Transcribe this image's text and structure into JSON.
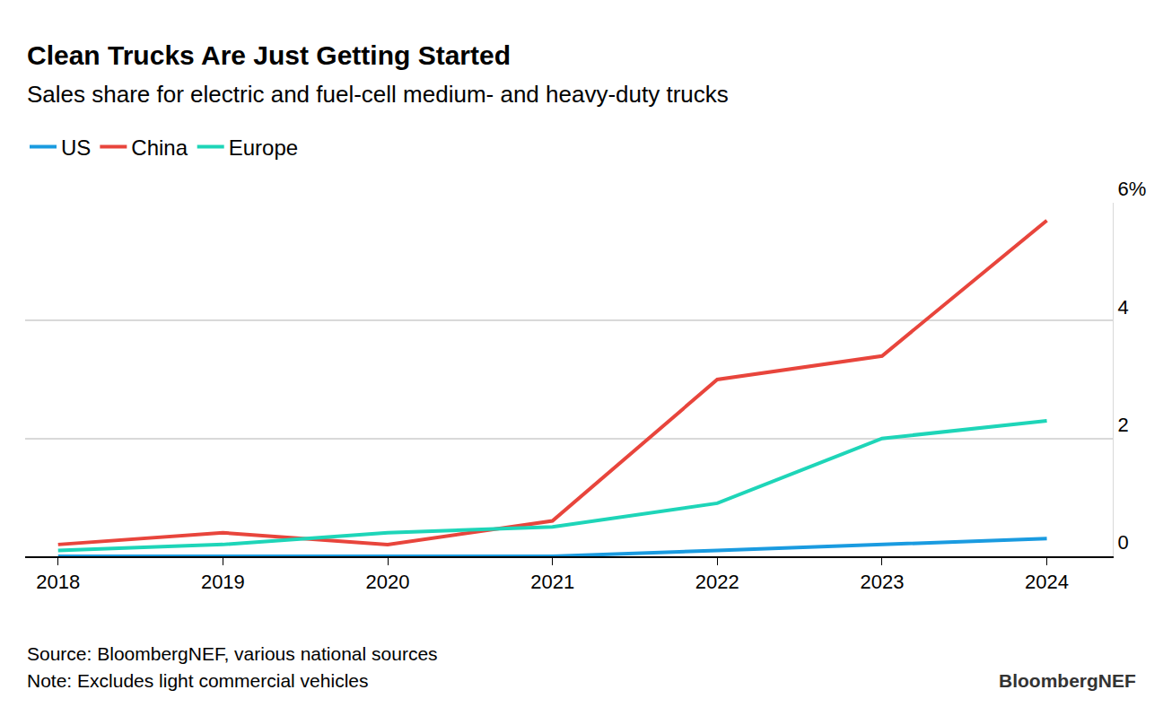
{
  "chart_data": {
    "type": "line",
    "title": "Clean Trucks Are Just Getting Started",
    "subtitle": "Sales share for electric and fuel-cell medium- and heavy-duty trucks",
    "x": [
      2018,
      2019,
      2020,
      2021,
      2022,
      2023,
      2024
    ],
    "series": [
      {
        "name": "US",
        "color": "#1a9be0",
        "values": [
          0,
          0,
          0,
          0,
          0.1,
          0.2,
          0.3
        ]
      },
      {
        "name": "China",
        "color": "#e8453c",
        "values": [
          0.2,
          0.4,
          0.2,
          0.6,
          3.0,
          3.4,
          5.7
        ]
      },
      {
        "name": "Europe",
        "color": "#1ed5b8",
        "values": [
          0.1,
          0.2,
          0.4,
          0.5,
          0.9,
          2.0,
          2.3
        ]
      }
    ],
    "xlim": [
      2017.8,
      2024.4
    ],
    "xticks": [
      2018,
      2019,
      2020,
      2021,
      2022,
      2023,
      2024
    ],
    "ylim": [
      0,
      6
    ],
    "yticks": [
      0,
      2,
      4,
      {
        "value": 6,
        "label": "6%"
      }
    ],
    "grid": true,
    "legend": "top-left",
    "source": "Source: BloombergNEF, various national sources",
    "note": "Note: Excludes light commercial vehicles",
    "credit": "BloombergNEF"
  }
}
